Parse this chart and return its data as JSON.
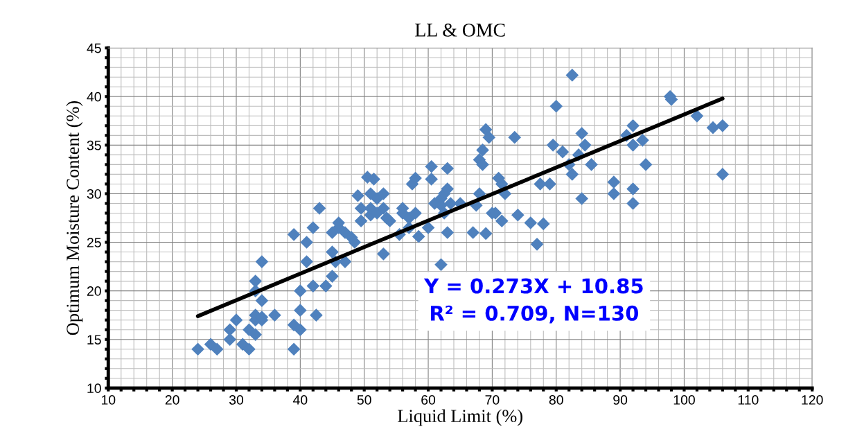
{
  "chart_data": {
    "type": "scatter",
    "title": "LL & OMC",
    "xlabel": "Liquid Limit (%)",
    "ylabel": "Optimum Moisture Content (%)",
    "annotations": [
      "Y = 0.273X + 10.85",
      "R² = 0.709, N=130"
    ],
    "xlim": [
      10,
      120
    ],
    "ylim": [
      10,
      45
    ],
    "xticks": [
      10,
      {
        "value": 12,
        "label": null
      },
      {
        "value": 14,
        "label": null
      },
      {
        "value": 16,
        "label": null
      },
      {
        "value": 18,
        "label": null
      },
      20,
      {
        "value": 22,
        "label": null
      },
      {
        "value": 24,
        "label": null
      },
      {
        "value": 26,
        "label": null
      },
      {
        "value": 28,
        "label": null
      },
      30,
      {
        "value": 32,
        "label": null
      },
      {
        "value": 34,
        "label": null
      },
      {
        "value": 36,
        "label": null
      },
      {
        "value": 38,
        "label": null
      },
      40,
      {
        "value": 42,
        "label": null
      },
      {
        "value": 44,
        "label": null
      },
      {
        "value": 46,
        "label": null
      },
      {
        "value": 48,
        "label": null
      },
      50,
      {
        "value": 52,
        "label": null
      },
      {
        "value": 54,
        "label": null
      },
      {
        "value": 56,
        "label": null
      },
      {
        "value": 58,
        "label": null
      },
      60,
      {
        "value": 62,
        "label": null
      },
      {
        "value": 64,
        "label": null
      },
      {
        "value": 66,
        "label": null
      },
      {
        "value": 68,
        "label": null
      },
      70,
      {
        "value": 72,
        "label": null
      },
      {
        "value": 74,
        "label": null
      },
      {
        "value": 76,
        "label": null
      },
      {
        "value": 78,
        "label": null
      },
      80,
      {
        "value": 82,
        "label": null
      },
      {
        "value": 84,
        "label": null
      },
      {
        "value": 86,
        "label": null
      },
      {
        "value": 88,
        "label": null
      },
      90,
      {
        "value": 92,
        "label": null
      },
      {
        "value": 94,
        "label": null
      },
      {
        "value": 96,
        "label": null
      },
      {
        "value": 98,
        "label": null
      },
      100,
      {
        "value": 102,
        "label": null
      },
      {
        "value": 104,
        "label": null
      },
      {
        "value": 106,
        "label": null
      },
      {
        "value": 108,
        "label": null
      },
      110,
      {
        "value": 112,
        "label": null
      },
      {
        "value": 114,
        "label": null
      },
      {
        "value": 116,
        "label": null
      },
      {
        "value": 118,
        "label": null
      },
      120
    ],
    "yticks": [
      10,
      {
        "value": 11,
        "label": null
      },
      {
        "value": 12,
        "label": null
      },
      {
        "value": 13,
        "label": null
      },
      {
        "value": 14,
        "label": null
      },
      15,
      {
        "value": 16,
        "label": null
      },
      {
        "value": 17,
        "label": null
      },
      {
        "value": 18,
        "label": null
      },
      {
        "value": 19,
        "label": null
      },
      20,
      {
        "value": 21,
        "label": null
      },
      {
        "value": 22,
        "label": null
      },
      {
        "value": 23,
        "label": null
      },
      {
        "value": 24,
        "label": null
      },
      25,
      {
        "value": 26,
        "label": null
      },
      {
        "value": 27,
        "label": null
      },
      {
        "value": 28,
        "label": null
      },
      {
        "value": 29,
        "label": null
      },
      30,
      {
        "value": 31,
        "label": null
      },
      {
        "value": 32,
        "label": null
      },
      {
        "value": 33,
        "label": null
      },
      {
        "value": 34,
        "label": null
      },
      35,
      {
        "value": 36,
        "label": null
      },
      {
        "value": 37,
        "label": null
      },
      {
        "value": 38,
        "label": null
      },
      {
        "value": 39,
        "label": null
      },
      40,
      {
        "value": 41,
        "label": null
      },
      {
        "value": 42,
        "label": null
      },
      {
        "value": 43,
        "label": null
      },
      {
        "value": 44,
        "label": null
      },
      45
    ],
    "grid": true,
    "legend": false,
    "marker": "diamond",
    "series": [
      {
        "color": "#4f81bd",
        "x": [
          24,
          26,
          27,
          29,
          29,
          30,
          31,
          32,
          32,
          33,
          33,
          33,
          33,
          33,
          34,
          34,
          34,
          34,
          36,
          39,
          39,
          39,
          40,
          40,
          40,
          41,
          41,
          42,
          42,
          42.5,
          43,
          44,
          45,
          45,
          45,
          45.5,
          46,
          46,
          47,
          47,
          48,
          48.5,
          49,
          49.5,
          49.5,
          50.5,
          51,
          51,
          51,
          51.5,
          52,
          52,
          53,
          53,
          53,
          53.5,
          54,
          55.5,
          56,
          56,
          57,
          57,
          57.5,
          58,
          58,
          58.5,
          60,
          60.5,
          60.5,
          61,
          62,
          62,
          62,
          62.5,
          62.5,
          63,
          63,
          63,
          63.5,
          65,
          67,
          67.5,
          68,
          68,
          68.5,
          68.5,
          69,
          69,
          69.5,
          70,
          70.5,
          71,
          71.5,
          71.5,
          72,
          73.5,
          74,
          76,
          77,
          77.5,
          78,
          79,
          79.5,
          80,
          81,
          82,
          82.5,
          82.5,
          83.5,
          84,
          84,
          84.5,
          85.5,
          89,
          89,
          91,
          92,
          92,
          92,
          92,
          93.5,
          94,
          97.8,
          98,
          102,
          104.5,
          106,
          106
        ],
        "values": [
          14,
          14.5,
          14,
          15,
          16,
          17,
          14.5,
          14,
          16,
          15.5,
          17,
          17.5,
          20,
          21,
          17,
          17.3,
          19,
          23,
          17.5,
          14,
          16.5,
          25.8,
          16,
          18,
          20,
          23,
          25,
          26.5,
          20.5,
          17.5,
          28.5,
          20.5,
          21.5,
          24,
          26,
          23,
          26.5,
          27,
          26,
          23,
          25.5,
          25,
          29.8,
          27.2,
          28.5,
          31.7,
          27.8,
          28.5,
          30,
          31.5,
          28,
          29.5,
          30,
          28.5,
          23.8,
          27.5,
          27.2,
          25.8,
          28,
          28.5,
          27.5,
          26.5,
          31,
          31.6,
          28,
          25.6,
          26.5,
          32.8,
          31.5,
          29,
          29.5,
          28.8,
          22.7,
          30,
          28,
          32.6,
          30.5,
          26,
          29,
          29,
          26,
          28.8,
          30,
          33.5,
          33,
          34.5,
          36.6,
          25.9,
          35.8,
          28,
          28,
          31.6,
          31,
          27.2,
          30,
          35.8,
          27.8,
          27,
          24.8,
          31,
          26.9,
          31,
          35,
          39,
          34.3,
          33,
          32,
          42.2,
          34,
          36.2,
          29.5,
          35,
          33,
          31.2,
          30,
          36,
          37,
          35,
          30.5,
          29,
          35.5,
          33,
          40,
          39.7,
          38,
          36.8,
          37,
          32
        ]
      },
      {
        "type": "line",
        "color": "#000000",
        "marker": "none",
        "x": [
          24,
          106
        ],
        "values": [
          17.4,
          39.8
        ]
      }
    ]
  }
}
